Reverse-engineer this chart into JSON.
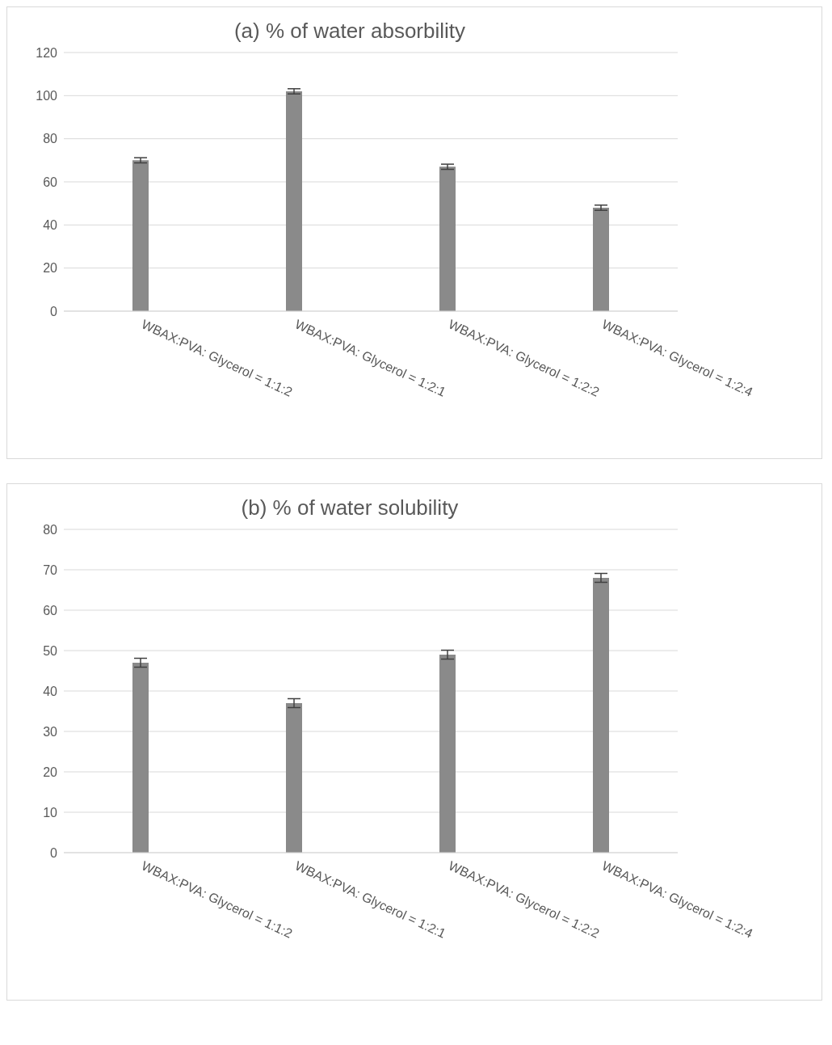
{
  "chart_data": [
    {
      "type": "bar",
      "title": "(a) % of water absorbility",
      "categories": [
        "WBAX:PVA: Glycerol = 1:1:2",
        "WBAX:PVA: Glycerol = 1:2:1",
        "WBAX:PVA: Glycerol = 1:2:2",
        "WBAX:PVA: Glycerol = 1:2:4"
      ],
      "values": [
        70,
        102,
        67,
        48
      ],
      "errors": [
        1.2,
        1.2,
        1.2,
        1.2
      ],
      "color": "#8a8a8a",
      "ylim": [
        0,
        120
      ],
      "yticks": [
        0,
        20,
        40,
        60,
        80,
        100,
        120
      ],
      "grid": "y",
      "legend": false
    },
    {
      "type": "bar",
      "title": "(b) % of water solubility",
      "categories": [
        "WBAX:PVA: Glycerol = 1:1:2",
        "WBAX:PVA: Glycerol = 1:2:1",
        "WBAX:PVA: Glycerol = 1:2:2",
        "WBAX:PVA: Glycerol = 1:2:4"
      ],
      "values": [
        47,
        37,
        49,
        68
      ],
      "errors": [
        1.1,
        1.1,
        1.1,
        1.1
      ],
      "color": "#8a8a8a",
      "ylim": [
        0,
        80
      ],
      "yticks": [
        0,
        10,
        20,
        30,
        40,
        50,
        60,
        70,
        80
      ],
      "grid": "y",
      "legend": false
    }
  ]
}
